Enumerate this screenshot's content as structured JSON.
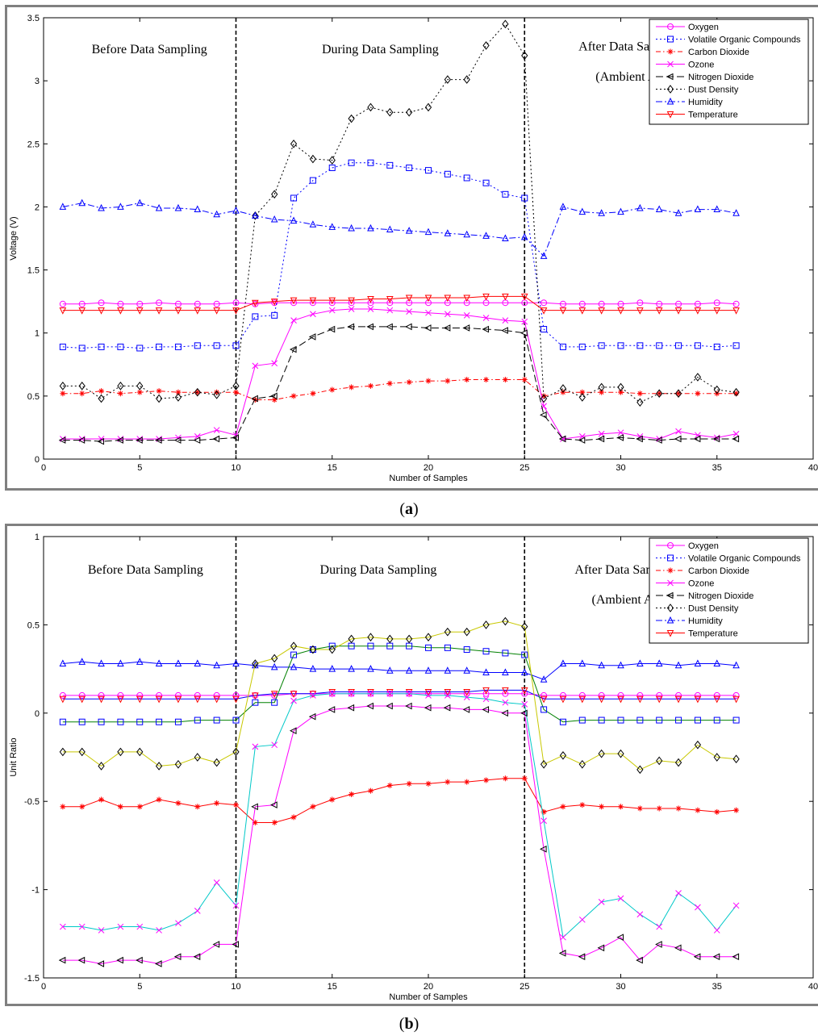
{
  "figures": [
    {
      "caption_letter": "a",
      "chart_data": {
        "type": "line",
        "xlabel": "Number of Samples",
        "ylabel": "Voltage (V)",
        "xlim": [
          0,
          40
        ],
        "ylim": [
          0,
          3.5
        ],
        "xticks": [
          0,
          5,
          10,
          15,
          20,
          25,
          30,
          35,
          40
        ],
        "yticks": [
          0,
          0.5,
          1,
          1.5,
          2,
          2.5,
          3,
          3.5
        ],
        "ytick_labels": [
          "0",
          "0.5",
          "1",
          "1.5",
          "2",
          "2.5",
          "3",
          "3.5"
        ],
        "grid": false,
        "legend_position": "top-right",
        "vlines": [
          10,
          25
        ],
        "annotations": [
          {
            "text": "Before Data Sampling",
            "x": 5.5,
            "y": 3.22
          },
          {
            "text": "During Data Sampling",
            "x": 17.5,
            "y": 3.22
          },
          {
            "text": "After Data Sampling",
            "x": 30.6,
            "y": 3.24
          },
          {
            "text": "(Ambient Air)",
            "x": 30.6,
            "y": 3.0
          }
        ],
        "x": [
          1,
          2,
          3,
          4,
          5,
          6,
          7,
          8,
          9,
          10,
          11,
          12,
          13,
          14,
          15,
          16,
          17,
          18,
          19,
          20,
          21,
          22,
          23,
          24,
          25,
          26,
          27,
          28,
          29,
          30,
          31,
          32,
          33,
          34,
          35,
          36
        ],
        "series": [
          {
            "name": "Oxygen",
            "color": "#ff00ff",
            "dash": "",
            "marker": "circle",
            "values": [
              1.23,
              1.23,
              1.24,
              1.23,
              1.23,
              1.24,
              1.23,
              1.23,
              1.23,
              1.24,
              1.23,
              1.24,
              1.24,
              1.24,
              1.24,
              1.24,
              1.24,
              1.24,
              1.24,
              1.24,
              1.24,
              1.24,
              1.24,
              1.24,
              1.24,
              1.24,
              1.23,
              1.23,
              1.23,
              1.23,
              1.24,
              1.23,
              1.23,
              1.23,
              1.24,
              1.23
            ]
          },
          {
            "name": "Volatile Organic Compounds",
            "color": "#0000ff",
            "dash": "2,3",
            "marker": "square",
            "values": [
              0.89,
              0.88,
              0.89,
              0.89,
              0.88,
              0.89,
              0.89,
              0.9,
              0.9,
              0.9,
              1.13,
              1.14,
              2.07,
              2.21,
              2.31,
              2.35,
              2.35,
              2.33,
              2.31,
              2.29,
              2.26,
              2.23,
              2.19,
              2.1,
              2.07,
              1.03,
              0.89,
              0.89,
              0.9,
              0.9,
              0.9,
              0.9,
              0.9,
              0.9,
              0.89,
              0.9
            ]
          },
          {
            "name": "Carbon Dioxide",
            "color": "#ff0000",
            "dash": "6,3,1.5,3",
            "marker": "star",
            "values": [
              0.52,
              0.52,
              0.54,
              0.52,
              0.53,
              0.54,
              0.53,
              0.53,
              0.53,
              0.53,
              0.47,
              0.47,
              0.5,
              0.52,
              0.55,
              0.57,
              0.58,
              0.6,
              0.61,
              0.62,
              0.62,
              0.63,
              0.63,
              0.63,
              0.63,
              0.5,
              0.53,
              0.53,
              0.53,
              0.53,
              0.52,
              0.52,
              0.52,
              0.52,
              0.52,
              0.52
            ]
          },
          {
            "name": "Ozone",
            "color": "#ff00ff",
            "dash": "",
            "marker": "x",
            "values": [
              0.16,
              0.16,
              0.16,
              0.16,
              0.16,
              0.16,
              0.17,
              0.18,
              0.23,
              0.19,
              0.74,
              0.76,
              1.1,
              1.15,
              1.18,
              1.19,
              1.19,
              1.18,
              1.17,
              1.16,
              1.15,
              1.14,
              1.12,
              1.1,
              1.09,
              0.42,
              0.16,
              0.18,
              0.2,
              0.21,
              0.18,
              0.16,
              0.22,
              0.19,
              0.17,
              0.2
            ]
          },
          {
            "name": "Nitrogen Dioxide",
            "color": "#000000",
            "dash": "9,4",
            "marker": "triangle-left",
            "values": [
              0.15,
              0.15,
              0.14,
              0.15,
              0.15,
              0.15,
              0.15,
              0.15,
              0.16,
              0.17,
              0.48,
              0.5,
              0.87,
              0.97,
              1.03,
              1.05,
              1.05,
              1.05,
              1.05,
              1.04,
              1.04,
              1.04,
              1.03,
              1.02,
              1.0,
              0.35,
              0.16,
              0.15,
              0.16,
              0.17,
              0.16,
              0.15,
              0.16,
              0.16,
              0.16,
              0.16
            ]
          },
          {
            "name": "Dust Density",
            "color": "#000000",
            "dash": "2,3",
            "marker": "diamond",
            "values": [
              0.58,
              0.58,
              0.48,
              0.58,
              0.58,
              0.48,
              0.49,
              0.53,
              0.51,
              0.58,
              1.93,
              2.1,
              2.5,
              2.38,
              2.37,
              2.7,
              2.79,
              2.75,
              2.75,
              2.79,
              3.01,
              3.01,
              3.28,
              3.45,
              3.2,
              0.48,
              0.56,
              0.49,
              0.57,
              0.57,
              0.45,
              0.52,
              0.52,
              0.65,
              0.55,
              0.53
            ]
          },
          {
            "name": "Humidity",
            "color": "#0000ff",
            "dash": "8,3,2,3",
            "marker": "triangle-up",
            "values": [
              2.0,
              2.03,
              1.99,
              2.0,
              2.03,
              1.99,
              1.99,
              1.98,
              1.94,
              1.97,
              1.93,
              1.9,
              1.89,
              1.86,
              1.84,
              1.83,
              1.83,
              1.82,
              1.81,
              1.8,
              1.79,
              1.78,
              1.77,
              1.75,
              1.76,
              1.61,
              2.0,
              1.96,
              1.95,
              1.96,
              1.99,
              1.98,
              1.95,
              1.98,
              1.98,
              1.95
            ]
          },
          {
            "name": "Temperature",
            "color": "#ff0000",
            "dash": "",
            "marker": "triangle-down",
            "values": [
              1.18,
              1.18,
              1.18,
              1.18,
              1.18,
              1.18,
              1.18,
              1.18,
              1.18,
              1.18,
              1.24,
              1.25,
              1.26,
              1.26,
              1.26,
              1.26,
              1.27,
              1.27,
              1.28,
              1.28,
              1.28,
              1.28,
              1.29,
              1.29,
              1.29,
              1.18,
              1.18,
              1.18,
              1.18,
              1.18,
              1.18,
              1.18,
              1.18,
              1.18,
              1.18,
              1.18
            ]
          }
        ]
      }
    },
    {
      "caption_letter": "b",
      "chart_data": {
        "type": "line",
        "xlabel": "Number of Samples",
        "ylabel": "Unit Ratio",
        "xlim": [
          0,
          40
        ],
        "ylim": [
          -1.5,
          1
        ],
        "xticks": [
          0,
          5,
          10,
          15,
          20,
          25,
          30,
          35,
          40
        ],
        "yticks": [
          -1.5,
          -1,
          -0.5,
          0,
          0.5,
          1
        ],
        "ytick_labels": [
          "-1.5",
          "-1",
          "-0.5",
          "0",
          "0.5",
          "1"
        ],
        "grid": false,
        "legend_position": "top-right",
        "vlines": [
          10,
          25
        ],
        "annotations": [
          {
            "text": "Before Data Sampling",
            "x": 5.3,
            "y": 0.79
          },
          {
            "text": "During Data Sampling",
            "x": 17.4,
            "y": 0.79
          },
          {
            "text": "After Data Sampling",
            "x": 30.4,
            "y": 0.79
          },
          {
            "text": "(Ambient Air)",
            "x": 30.4,
            "y": 0.62
          }
        ],
        "legend_entries": [
          {
            "name": "Oxygen",
            "color": "#ff00ff",
            "dash": "",
            "marker": "circle"
          },
          {
            "name": "Volatile Organic Compounds",
            "color": "#0000ff",
            "dash": "2,3",
            "marker": "square"
          },
          {
            "name": "Carbon Dioxide",
            "color": "#ff0000",
            "dash": "6,3,1.5,3",
            "marker": "star"
          },
          {
            "name": "Ozone",
            "color": "#ff00ff",
            "dash": "",
            "marker": "x"
          },
          {
            "name": "Nitrogen Dioxide",
            "color": "#000000",
            "dash": "9,4",
            "marker": "triangle-left"
          },
          {
            "name": "Dust Density",
            "color": "#000000",
            "dash": "2,3",
            "marker": "diamond"
          },
          {
            "name": "Humidity",
            "color": "#0000ff",
            "dash": "8,3,2,3",
            "marker": "triangle-up"
          },
          {
            "name": "Temperature",
            "color": "#ff0000",
            "dash": "",
            "marker": "triangle-down"
          }
        ],
        "x": [
          1,
          2,
          3,
          4,
          5,
          6,
          7,
          8,
          9,
          10,
          11,
          12,
          13,
          14,
          15,
          16,
          17,
          18,
          19,
          20,
          21,
          22,
          23,
          24,
          25,
          26,
          27,
          28,
          29,
          30,
          31,
          32,
          33,
          34,
          35,
          36
        ],
        "series": [
          {
            "color": "#0000ff",
            "line_color": "#0000ff",
            "dash": "",
            "marker": "triangle-up",
            "values": [
              0.28,
              0.29,
              0.28,
              0.28,
              0.29,
              0.28,
              0.28,
              0.28,
              0.27,
              0.28,
              0.27,
              0.26,
              0.26,
              0.25,
              0.25,
              0.25,
              0.25,
              0.24,
              0.24,
              0.24,
              0.24,
              0.24,
              0.23,
              0.23,
              0.23,
              0.19,
              0.28,
              0.28,
              0.27,
              0.27,
              0.28,
              0.28,
              0.27,
              0.28,
              0.28,
              0.27
            ]
          },
          {
            "color": "#ff00ff",
            "line_color": "#ff00ff",
            "dash": "",
            "marker": "circle",
            "values": [
              0.1,
              0.1,
              0.1,
              0.1,
              0.1,
              0.1,
              0.1,
              0.1,
              0.1,
              0.1,
              0.1,
              0.1,
              0.11,
              0.11,
              0.11,
              0.11,
              0.11,
              0.11,
              0.11,
              0.11,
              0.11,
              0.11,
              0.11,
              0.11,
              0.11,
              0.1,
              0.1,
              0.1,
              0.1,
              0.1,
              0.1,
              0.1,
              0.1,
              0.1,
              0.1,
              0.1
            ]
          },
          {
            "color": "#ff0000",
            "line_color": "#0000ff",
            "dash": "",
            "marker": "triangle-down",
            "values": [
              0.08,
              0.08,
              0.08,
              0.08,
              0.08,
              0.08,
              0.08,
              0.08,
              0.08,
              0.08,
              0.1,
              0.11,
              0.11,
              0.11,
              0.12,
              0.12,
              0.12,
              0.12,
              0.12,
              0.12,
              0.12,
              0.12,
              0.13,
              0.13,
              0.13,
              0.08,
              0.08,
              0.08,
              0.08,
              0.08,
              0.08,
              0.08,
              0.08,
              0.08,
              0.08,
              0.08
            ]
          },
          {
            "color": "#0000ff",
            "line_color": "#008000",
            "dash": "",
            "marker": "square",
            "values": [
              -0.05,
              -0.05,
              -0.05,
              -0.05,
              -0.05,
              -0.05,
              -0.05,
              -0.04,
              -0.04,
              -0.04,
              0.06,
              0.06,
              0.33,
              0.36,
              0.38,
              0.38,
              0.38,
              0.38,
              0.38,
              0.37,
              0.37,
              0.36,
              0.35,
              0.34,
              0.33,
              0.02,
              -0.05,
              -0.04,
              -0.04,
              -0.04,
              -0.04,
              -0.04,
              -0.04,
              -0.04,
              -0.04,
              -0.04
            ]
          },
          {
            "color": "#000000",
            "line_color": "#c8c800",
            "dash": "",
            "marker": "diamond",
            "values": [
              -0.22,
              -0.22,
              -0.3,
              -0.22,
              -0.22,
              -0.3,
              -0.29,
              -0.25,
              -0.28,
              -0.22,
              0.28,
              0.31,
              0.38,
              0.36,
              0.36,
              0.42,
              0.43,
              0.42,
              0.42,
              0.43,
              0.46,
              0.46,
              0.5,
              0.52,
              0.49,
              -0.29,
              -0.24,
              -0.29,
              -0.23,
              -0.23,
              -0.32,
              -0.27,
              -0.28,
              -0.18,
              -0.25,
              -0.26
            ]
          },
          {
            "color": "#ff0000",
            "line_color": "#ff0000",
            "dash": "",
            "marker": "star",
            "values": [
              -0.53,
              -0.53,
              -0.49,
              -0.53,
              -0.53,
              -0.49,
              -0.51,
              -0.53,
              -0.51,
              -0.52,
              -0.62,
              -0.62,
              -0.59,
              -0.53,
              -0.49,
              -0.46,
              -0.44,
              -0.41,
              -0.4,
              -0.4,
              -0.39,
              -0.39,
              -0.38,
              -0.37,
              -0.37,
              -0.56,
              -0.53,
              -0.52,
              -0.53,
              -0.53,
              -0.54,
              -0.54,
              -0.54,
              -0.55,
              -0.56,
              -0.55
            ]
          },
          {
            "color": "#ff00ff",
            "line_color": "#00c8c8",
            "dash": "",
            "marker": "x",
            "values": [
              -1.21,
              -1.21,
              -1.23,
              -1.21,
              -1.21,
              -1.23,
              -1.19,
              -1.12,
              -0.96,
              -1.09,
              -0.19,
              -0.18,
              0.07,
              0.1,
              0.11,
              0.11,
              0.11,
              0.11,
              0.11,
              0.1,
              0.1,
              0.09,
              0.08,
              0.06,
              0.05,
              -0.61,
              -1.27,
              -1.17,
              -1.07,
              -1.05,
              -1.14,
              -1.21,
              -1.02,
              -1.1,
              -1.23,
              -1.09
            ]
          },
          {
            "color": "#000000",
            "line_color": "#ff00ff",
            "dash": "",
            "marker": "triangle-left",
            "values": [
              -1.4,
              -1.4,
              -1.42,
              -1.4,
              -1.4,
              -1.42,
              -1.38,
              -1.38,
              -1.31,
              -1.31,
              -0.53,
              -0.52,
              -0.1,
              -0.02,
              0.02,
              0.03,
              0.04,
              0.04,
              0.04,
              0.03,
              0.03,
              0.02,
              0.02,
              0.0,
              0.0,
              -0.77,
              -1.36,
              -1.38,
              -1.33,
              -1.27,
              -1.4,
              -1.31,
              -1.33,
              -1.38,
              -1.38,
              -1.38
            ]
          }
        ]
      }
    }
  ]
}
